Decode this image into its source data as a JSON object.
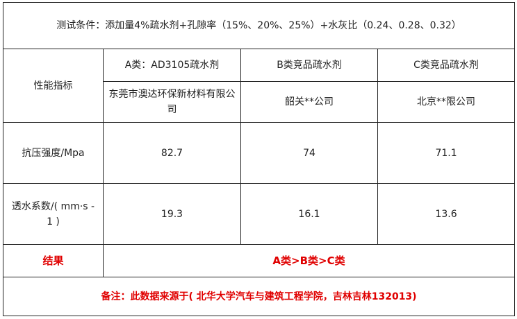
{
  "condition": "测试条件：添加量4%疏水剂+孔隙率（15%、20%、25%）+水灰比（0.24、0.28、0.32）",
  "header": {
    "metric_label": "性能指标",
    "columns": [
      {
        "type": "A类：AD3105疏水剂",
        "company": "东莞市澳达环保新材料有限公司"
      },
      {
        "type": "B类竞品疏水剂",
        "company": "韶关**公司"
      },
      {
        "type": "C类竞品疏水剂",
        "company": "北京**限公司"
      }
    ]
  },
  "rows": [
    {
      "label": "抗压强度/Mpa",
      "values": [
        "82.7",
        "74",
        "71.1"
      ]
    },
    {
      "label": "透水系数/( mm·s - 1 )",
      "values": [
        "19.3",
        "16.1",
        "13.6"
      ]
    }
  ],
  "result": {
    "label": "结果",
    "value": "A类>B类>C类"
  },
  "note": "备注：此数据来源于( 北华大学汽车与建筑工程学院，吉林吉林132013)",
  "colors": {
    "accent_red": "#e00000",
    "border": "#222222"
  }
}
